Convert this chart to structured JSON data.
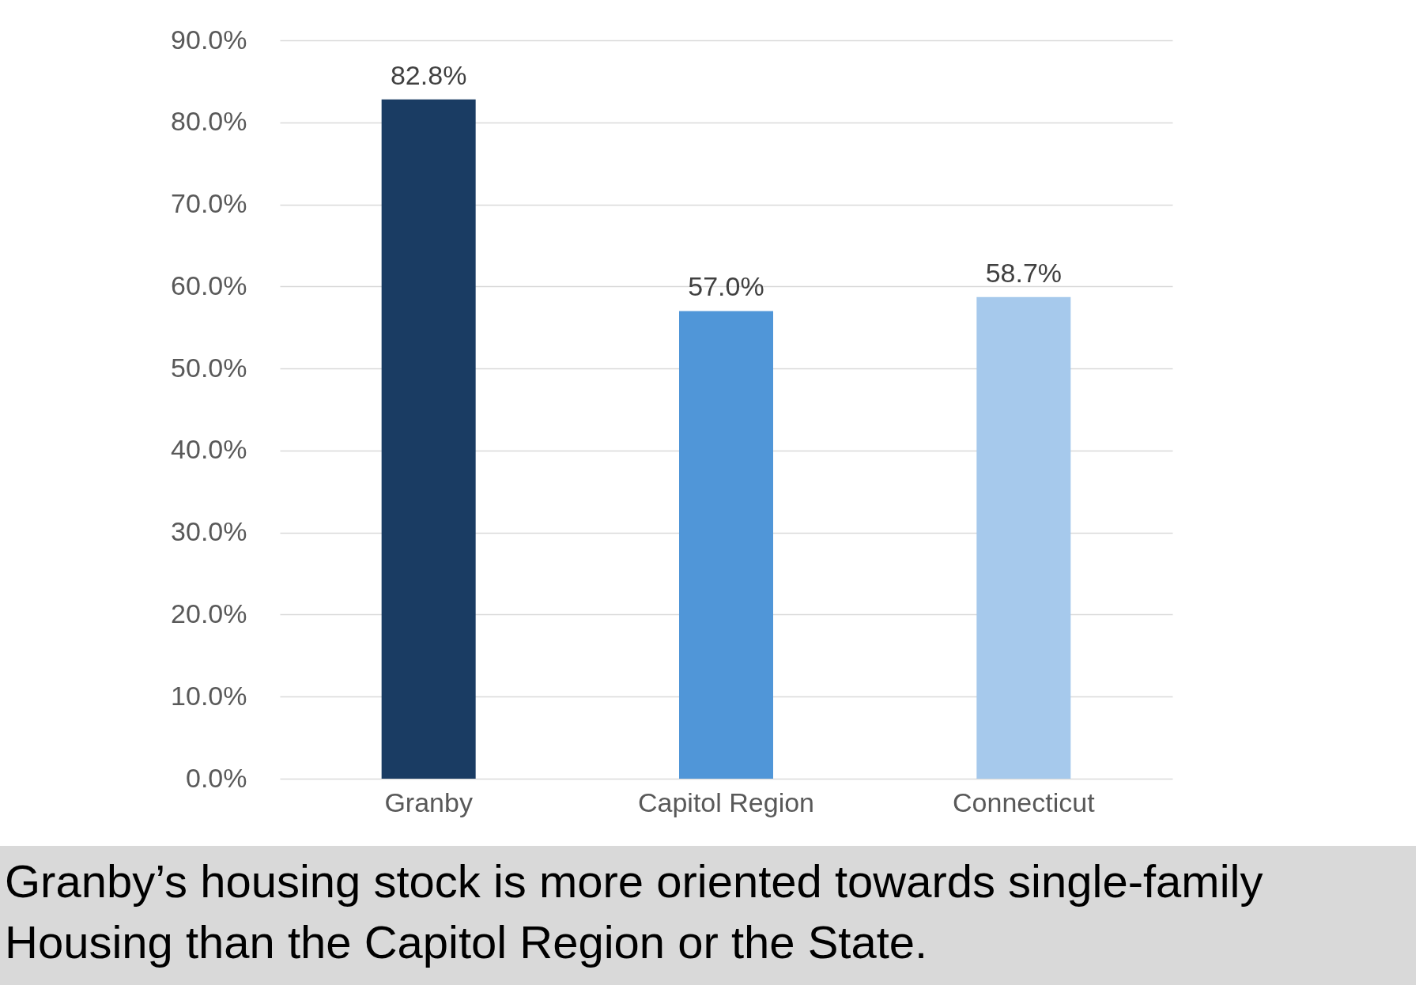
{
  "chart_data": {
    "type": "bar",
    "categories": [
      "Granby",
      "Capitol Region",
      "Connecticut"
    ],
    "values": [
      82.8,
      57.0,
      58.7
    ],
    "colors": [
      "#1a3c63",
      "#5096d8",
      "#a6c9ec"
    ],
    "value_labels": [
      "82.8%",
      "57.0%",
      "58.7%"
    ],
    "ylim": [
      0,
      90
    ],
    "yticks": [
      {
        "value": 0,
        "label": "0.0%"
      },
      {
        "value": 10,
        "label": "10.0%"
      },
      {
        "value": 20,
        "label": "20.0%"
      },
      {
        "value": 30,
        "label": "30.0%"
      },
      {
        "value": 40,
        "label": "40.0%"
      },
      {
        "value": 50,
        "label": "50.0%"
      },
      {
        "value": 60,
        "label": "60.0%"
      },
      {
        "value": 70,
        "label": "70.0%"
      },
      {
        "value": 80,
        "label": "80.0%"
      },
      {
        "value": 90,
        "label": "90.0%"
      }
    ],
    "grid": "y",
    "annotations": [
      "Granby’s housing stock is more oriented towards single-family Housing than the Capitol Region or the State."
    ]
  }
}
